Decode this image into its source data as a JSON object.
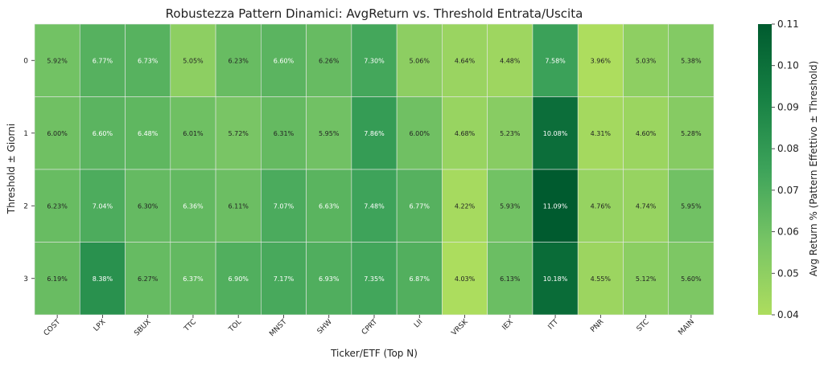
{
  "chart_data": {
    "type": "heatmap",
    "title": "Robustezza Pattern Dinamici: AvgReturn vs. Threshold Entrata/Uscita",
    "xlabel": "Ticker/ETF (Top N)",
    "ylabel": "Threshold ± Giorni",
    "colorbar_label": "Avg Return % (Pattern Effettivo ± Threshold)",
    "x_categories": [
      "COST",
      "LPX",
      "SBUX",
      "TTC",
      "TOL",
      "MNST",
      "SHW",
      "CPRT",
      "LII",
      "VRSK",
      "IEX",
      "ITT",
      "PNR",
      "STC",
      "MAIN"
    ],
    "y_categories": [
      "0",
      "1",
      "2",
      "3"
    ],
    "values": [
      [
        0.0592,
        0.0677,
        0.0673,
        0.0505,
        0.0623,
        0.066,
        0.0626,
        0.073,
        0.0506,
        0.0464,
        0.0448,
        0.0758,
        0.0396,
        0.0503,
        0.0538
      ],
      [
        0.06,
        0.066,
        0.0648,
        0.0601,
        0.0572,
        0.0631,
        0.0595,
        0.0786,
        0.06,
        0.0468,
        0.0523,
        0.1008,
        0.0431,
        0.046,
        0.0528
      ],
      [
        0.0623,
        0.0704,
        0.063,
        0.0636,
        0.0611,
        0.0707,
        0.0663,
        0.0748,
        0.0677,
        0.0422,
        0.0593,
        0.1109,
        0.0476,
        0.0474,
        0.0595
      ],
      [
        0.0619,
        0.0838,
        0.0627,
        0.0637,
        0.069,
        0.0717,
        0.0693,
        0.0735,
        0.0687,
        0.0403,
        0.0613,
        0.1018,
        0.0455,
        0.0512,
        0.056
      ]
    ],
    "cell_labels": [
      [
        "5.92%",
        "6.77%",
        "6.73%",
        "5.05%",
        "6.23%",
        "6.60%",
        "6.26%",
        "7.30%",
        "5.06%",
        "4.64%",
        "4.48%",
        "7.58%",
        "3.96%",
        "5.03%",
        "5.38%"
      ],
      [
        "6.00%",
        "6.60%",
        "6.48%",
        "6.01%",
        "5.72%",
        "6.31%",
        "5.95%",
        "7.86%",
        "6.00%",
        "4.68%",
        "5.23%",
        "10.08%",
        "4.31%",
        "4.60%",
        "5.28%"
      ],
      [
        "6.23%",
        "7.04%",
        "6.30%",
        "6.36%",
        "6.11%",
        "7.07%",
        "6.63%",
        "7.48%",
        "6.77%",
        "4.22%",
        "5.93%",
        "11.09%",
        "4.76%",
        "4.74%",
        "5.95%"
      ],
      [
        "6.19%",
        "8.38%",
        "6.27%",
        "6.37%",
        "6.90%",
        "7.17%",
        "6.93%",
        "7.35%",
        "6.87%",
        "4.03%",
        "6.13%",
        "10.18%",
        "4.55%",
        "5.12%",
        "5.60%"
      ]
    ],
    "color_range": [
      0.04,
      0.11
    ],
    "colorbar_ticks": [
      {
        "value": 0.04,
        "label": "0.04"
      },
      {
        "value": 0.05,
        "label": "0.05"
      },
      {
        "value": 0.06,
        "label": "0.06"
      },
      {
        "value": 0.07,
        "label": "0.07"
      },
      {
        "value": 0.08,
        "label": "0.08"
      },
      {
        "value": 0.09,
        "label": "0.09"
      },
      {
        "value": 0.1,
        "label": "0.10"
      },
      {
        "value": 0.11,
        "label": "0.11"
      }
    ],
    "colormap": [
      "#addd5e",
      "#78c565",
      "#3da35a",
      "#168043",
      "#005b2f"
    ],
    "grid": false
  }
}
